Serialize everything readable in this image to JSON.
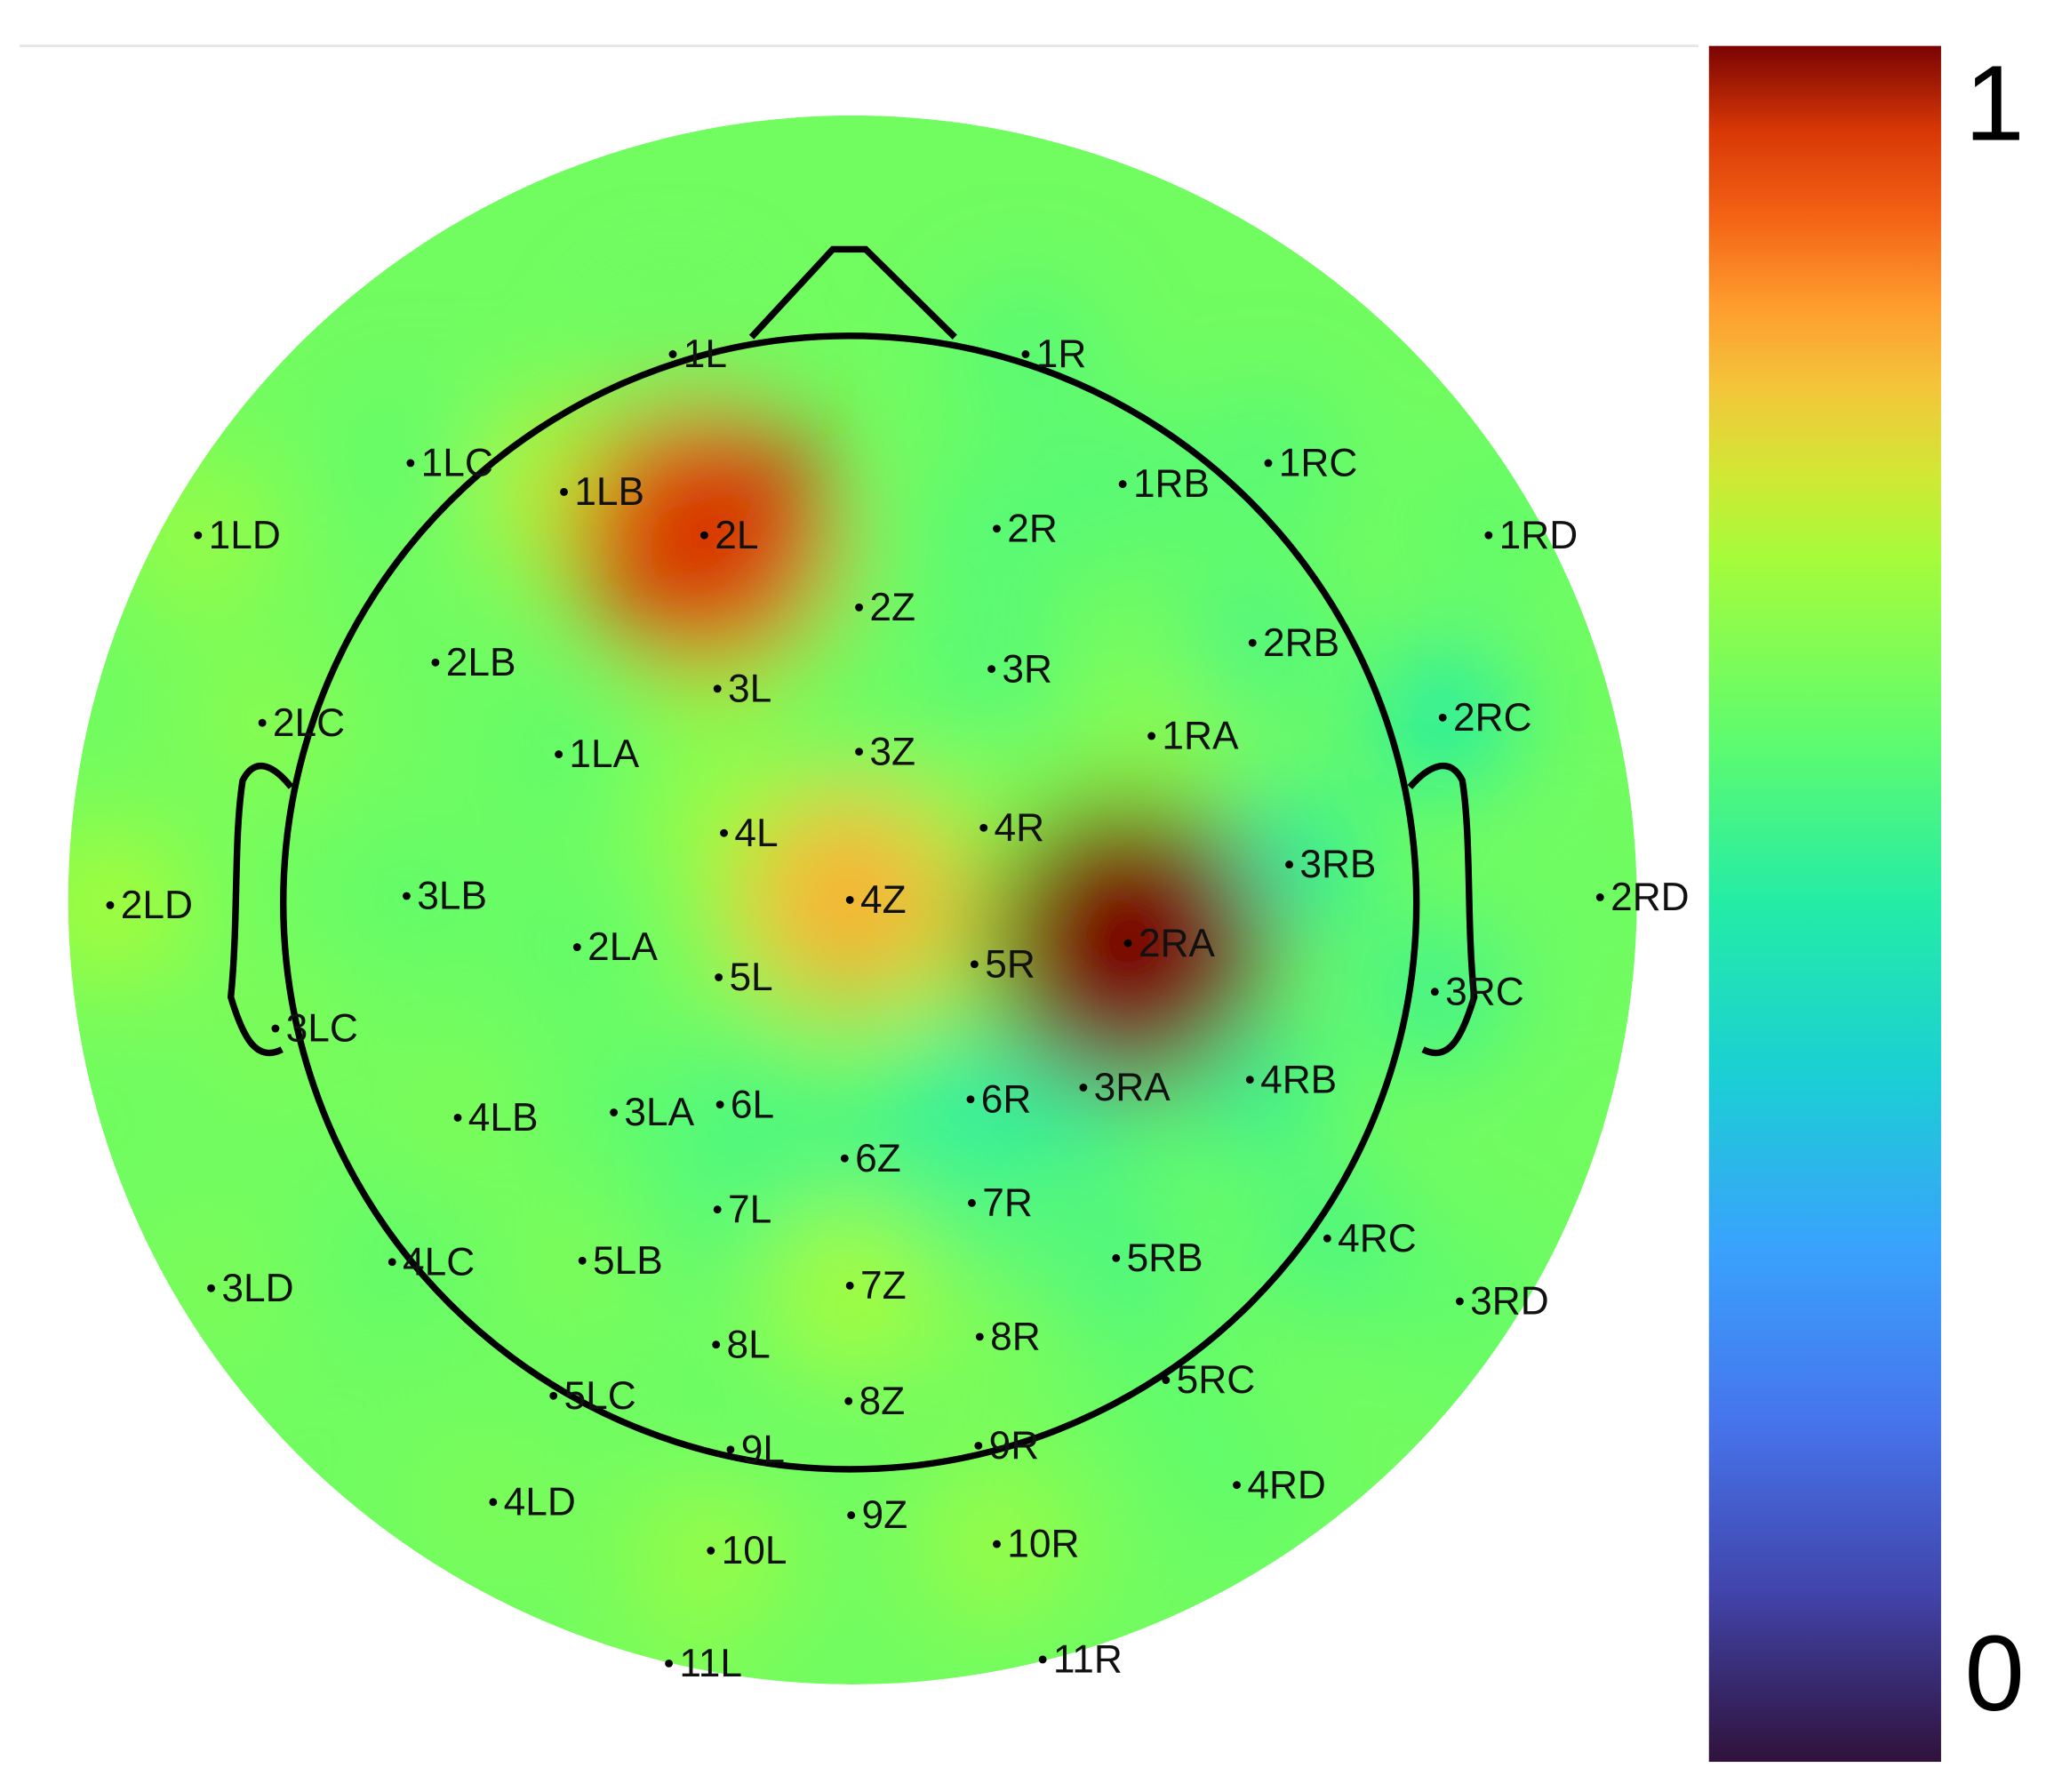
{
  "chart_data": {
    "type": "topomap",
    "colormap": "turbo",
    "electrodes": [
      "1L",
      "1R",
      "1LC",
      "1LB",
      "1RB",
      "1RC",
      "1LD",
      "2L",
      "2R",
      "1RD",
      "2Z",
      "2LB",
      "3L",
      "3R",
      "2RB",
      "2LC",
      "2RC",
      "1LA",
      "3Z",
      "1RA",
      "4L",
      "4R",
      "3RB",
      "2LD",
      "3LB",
      "4Z",
      "2RD",
      "2LA",
      "5L",
      "5R",
      "2RA",
      "3LC",
      "3RC",
      "4LB",
      "3LA",
      "6L",
      "6R",
      "3RA",
      "4RB",
      "6Z",
      "7L",
      "7R",
      "4RC",
      "3LD",
      "4LC",
      "5LB",
      "5RB",
      "7Z",
      "3RD",
      "8L",
      "8R",
      "5RC",
      "5LC",
      "8Z",
      "9L",
      "9R",
      "4RD",
      "4LD",
      "9Z",
      "10L",
      "10R",
      "11L",
      "11R"
    ],
    "values": [
      0.62,
      0.58,
      0.6,
      0.72,
      0.58,
      0.58,
      0.68,
      0.95,
      0.58,
      0.6,
      0.62,
      0.62,
      0.66,
      0.58,
      0.56,
      0.66,
      0.5,
      0.6,
      0.62,
      0.66,
      0.68,
      0.66,
      0.5,
      0.7,
      0.6,
      0.82,
      0.62,
      0.6,
      0.64,
      0.66,
      1.0,
      0.64,
      0.54,
      0.64,
      0.6,
      0.56,
      0.5,
      0.5,
      0.52,
      0.56,
      0.58,
      0.56,
      0.56,
      0.64,
      0.6,
      0.64,
      0.56,
      0.7,
      0.6,
      0.62,
      0.64,
      0.6,
      0.62,
      0.62,
      0.6,
      0.62,
      0.6,
      0.64,
      0.62,
      0.68,
      0.68,
      0.64,
      0.62
    ],
    "clim": [
      0,
      1
    ],
    "cticks": [
      0,
      1
    ]
  }
}
